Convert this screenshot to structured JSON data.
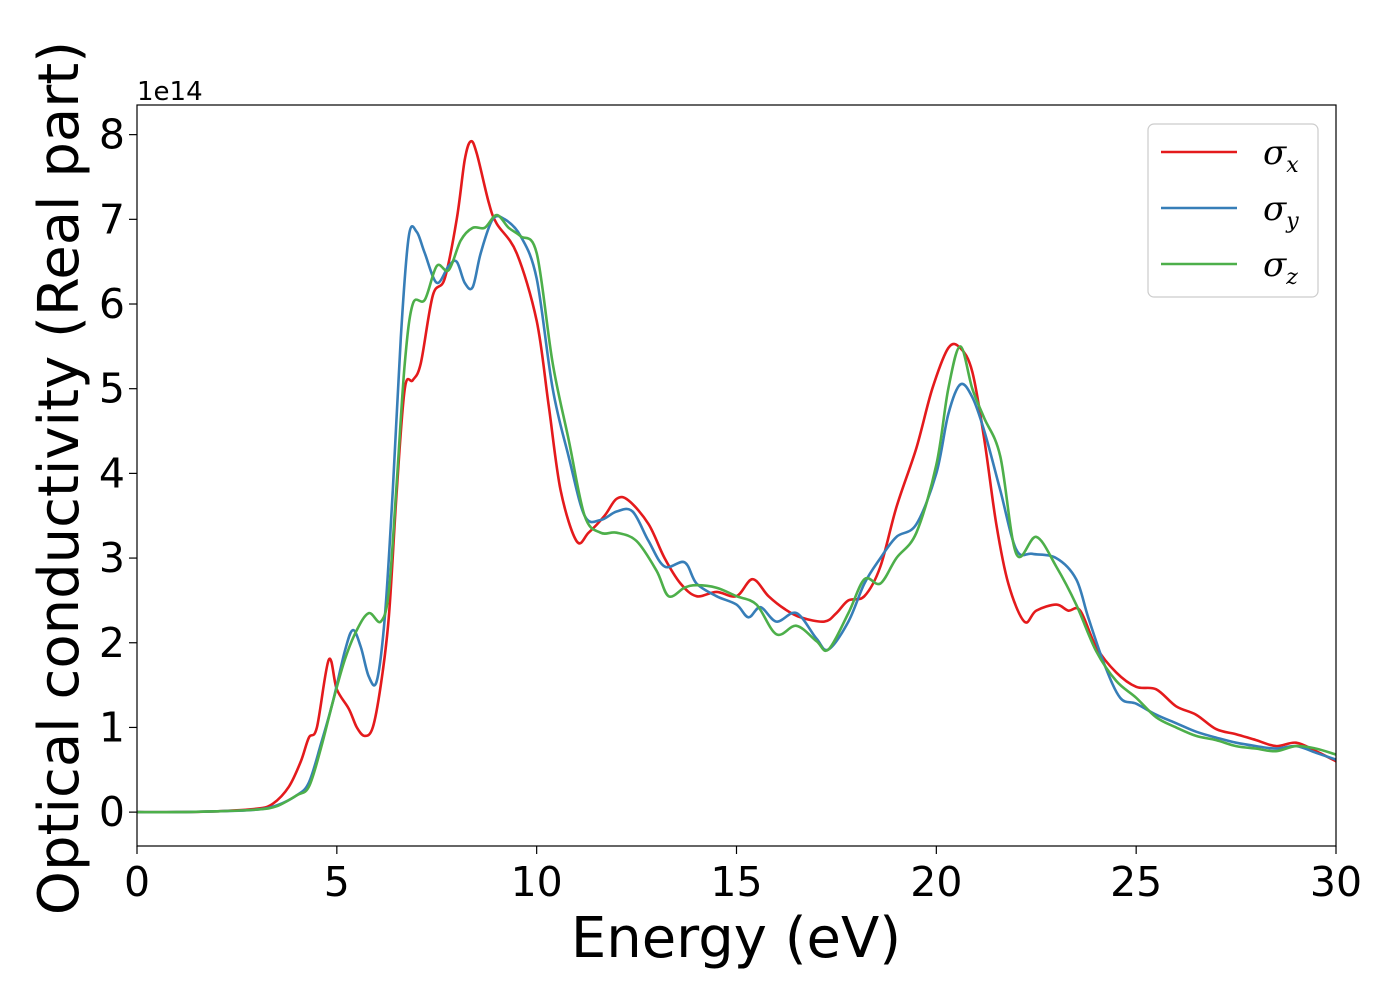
{
  "chart_data": {
    "type": "line",
    "xlabel": "Energy (eV)",
    "ylabel": "Optical conductivity (Real part)",
    "y_offset_label": "1e14",
    "xlim": [
      0,
      30
    ],
    "ylim": [
      -0.4,
      8.35
    ],
    "x_ticks": [
      0,
      5,
      10,
      15,
      20,
      25,
      30
    ],
    "y_ticks": [
      0,
      1,
      2,
      3,
      4,
      5,
      6,
      7,
      8
    ],
    "grid": false,
    "legend_position": "top-right",
    "series": [
      {
        "name": "σx",
        "symbol": "σ",
        "subscript": "x",
        "color": "#e41a1c",
        "points": [
          [
            0,
            0
          ],
          [
            1,
            0
          ],
          [
            2,
            0.01
          ],
          [
            3,
            0.04
          ],
          [
            3.4,
            0.1
          ],
          [
            3.8,
            0.3
          ],
          [
            4.1,
            0.6
          ],
          [
            4.3,
            0.88
          ],
          [
            4.5,
            1.0
          ],
          [
            4.8,
            1.8
          ],
          [
            5.0,
            1.45
          ],
          [
            5.3,
            1.22
          ],
          [
            5.5,
            1.0
          ],
          [
            5.7,
            0.9
          ],
          [
            5.9,
            1.0
          ],
          [
            6.1,
            1.5
          ],
          [
            6.3,
            2.3
          ],
          [
            6.5,
            3.8
          ],
          [
            6.7,
            5.0
          ],
          [
            6.9,
            5.1
          ],
          [
            7.1,
            5.3
          ],
          [
            7.4,
            6.1
          ],
          [
            7.7,
            6.3
          ],
          [
            8.0,
            7.0
          ],
          [
            8.2,
            7.7
          ],
          [
            8.35,
            7.92
          ],
          [
            8.5,
            7.78
          ],
          [
            8.8,
            7.2
          ],
          [
            9.0,
            6.95
          ],
          [
            9.5,
            6.6
          ],
          [
            10.0,
            5.8
          ],
          [
            10.3,
            4.8
          ],
          [
            10.6,
            3.8
          ],
          [
            11.0,
            3.2
          ],
          [
            11.3,
            3.3
          ],
          [
            11.7,
            3.5
          ],
          [
            12.0,
            3.7
          ],
          [
            12.3,
            3.68
          ],
          [
            12.8,
            3.4
          ],
          [
            13.2,
            3.0
          ],
          [
            13.6,
            2.7
          ],
          [
            14.0,
            2.55
          ],
          [
            14.5,
            2.6
          ],
          [
            15.0,
            2.55
          ],
          [
            15.4,
            2.75
          ],
          [
            15.8,
            2.55
          ],
          [
            16.2,
            2.4
          ],
          [
            16.6,
            2.3
          ],
          [
            17.2,
            2.25
          ],
          [
            17.5,
            2.35
          ],
          [
            17.8,
            2.5
          ],
          [
            18.2,
            2.55
          ],
          [
            18.6,
            2.9
          ],
          [
            19.0,
            3.6
          ],
          [
            19.5,
            4.3
          ],
          [
            19.9,
            5.0
          ],
          [
            20.3,
            5.48
          ],
          [
            20.6,
            5.48
          ],
          [
            20.9,
            5.2
          ],
          [
            21.2,
            4.4
          ],
          [
            21.5,
            3.4
          ],
          [
            21.8,
            2.7
          ],
          [
            22.2,
            2.25
          ],
          [
            22.5,
            2.38
          ],
          [
            23.0,
            2.45
          ],
          [
            23.3,
            2.38
          ],
          [
            23.6,
            2.38
          ],
          [
            24.0,
            1.95
          ],
          [
            24.5,
            1.65
          ],
          [
            25.0,
            1.48
          ],
          [
            25.5,
            1.45
          ],
          [
            26.0,
            1.25
          ],
          [
            26.5,
            1.15
          ],
          [
            27.0,
            0.98
          ],
          [
            27.5,
            0.92
          ],
          [
            28.0,
            0.85
          ],
          [
            28.5,
            0.78
          ],
          [
            29.0,
            0.82
          ],
          [
            29.5,
            0.72
          ],
          [
            30.0,
            0.6
          ]
        ]
      },
      {
        "name": "σy",
        "symbol": "σ",
        "subscript": "y",
        "color": "#377eb8",
        "points": [
          [
            0,
            0
          ],
          [
            1,
            0
          ],
          [
            2,
            0.01
          ],
          [
            3,
            0.03
          ],
          [
            3.5,
            0.08
          ],
          [
            4.0,
            0.2
          ],
          [
            4.3,
            0.35
          ],
          [
            4.6,
            0.8
          ],
          [
            4.9,
            1.3
          ],
          [
            5.2,
            1.9
          ],
          [
            5.4,
            2.15
          ],
          [
            5.6,
            1.95
          ],
          [
            5.8,
            1.6
          ],
          [
            6.0,
            1.55
          ],
          [
            6.2,
            2.3
          ],
          [
            6.4,
            3.8
          ],
          [
            6.6,
            5.6
          ],
          [
            6.8,
            6.8
          ],
          [
            7.0,
            6.85
          ],
          [
            7.2,
            6.6
          ],
          [
            7.5,
            6.25
          ],
          [
            7.8,
            6.45
          ],
          [
            8.0,
            6.5
          ],
          [
            8.2,
            6.25
          ],
          [
            8.4,
            6.2
          ],
          [
            8.6,
            6.6
          ],
          [
            8.9,
            7.0
          ],
          [
            9.2,
            7.0
          ],
          [
            9.6,
            6.8
          ],
          [
            10.0,
            6.3
          ],
          [
            10.4,
            5.0
          ],
          [
            10.8,
            4.2
          ],
          [
            11.2,
            3.5
          ],
          [
            11.6,
            3.45
          ],
          [
            12.0,
            3.55
          ],
          [
            12.4,
            3.55
          ],
          [
            12.8,
            3.2
          ],
          [
            13.2,
            2.9
          ],
          [
            13.7,
            2.95
          ],
          [
            14.0,
            2.7
          ],
          [
            14.5,
            2.55
          ],
          [
            15.0,
            2.45
          ],
          [
            15.3,
            2.3
          ],
          [
            15.6,
            2.42
          ],
          [
            16.0,
            2.25
          ],
          [
            16.5,
            2.35
          ],
          [
            17.0,
            2.05
          ],
          [
            17.3,
            1.92
          ],
          [
            17.8,
            2.25
          ],
          [
            18.2,
            2.7
          ],
          [
            18.6,
            3.0
          ],
          [
            19.0,
            3.25
          ],
          [
            19.5,
            3.4
          ],
          [
            20.0,
            4.0
          ],
          [
            20.3,
            4.7
          ],
          [
            20.6,
            5.05
          ],
          [
            20.9,
            4.9
          ],
          [
            21.2,
            4.5
          ],
          [
            21.6,
            3.8
          ],
          [
            22.0,
            3.1
          ],
          [
            22.4,
            3.05
          ],
          [
            23.0,
            3.0
          ],
          [
            23.5,
            2.75
          ],
          [
            23.8,
            2.3
          ],
          [
            24.2,
            1.75
          ],
          [
            24.6,
            1.35
          ],
          [
            25.0,
            1.28
          ],
          [
            25.5,
            1.15
          ],
          [
            26.0,
            1.05
          ],
          [
            26.5,
            0.95
          ],
          [
            27.0,
            0.88
          ],
          [
            27.5,
            0.82
          ],
          [
            28.0,
            0.78
          ],
          [
            28.5,
            0.75
          ],
          [
            29.0,
            0.78
          ],
          [
            29.5,
            0.7
          ],
          [
            30.0,
            0.62
          ]
        ]
      },
      {
        "name": "σz",
        "symbol": "σ",
        "subscript": "z",
        "color": "#4daf4a",
        "points": [
          [
            0,
            0
          ],
          [
            1,
            0
          ],
          [
            2,
            0.01
          ],
          [
            3,
            0.03
          ],
          [
            3.5,
            0.07
          ],
          [
            4.0,
            0.2
          ],
          [
            4.3,
            0.3
          ],
          [
            4.6,
            0.75
          ],
          [
            4.9,
            1.3
          ],
          [
            5.2,
            1.8
          ],
          [
            5.5,
            2.15
          ],
          [
            5.8,
            2.35
          ],
          [
            6.1,
            2.25
          ],
          [
            6.3,
            2.6
          ],
          [
            6.5,
            3.9
          ],
          [
            6.7,
            5.3
          ],
          [
            6.9,
            6.0
          ],
          [
            7.2,
            6.05
          ],
          [
            7.5,
            6.45
          ],
          [
            7.8,
            6.4
          ],
          [
            8.1,
            6.75
          ],
          [
            8.4,
            6.9
          ],
          [
            8.7,
            6.9
          ],
          [
            9.0,
            7.05
          ],
          [
            9.3,
            6.9
          ],
          [
            9.6,
            6.8
          ],
          [
            10.0,
            6.6
          ],
          [
            10.4,
            5.3
          ],
          [
            10.8,
            4.4
          ],
          [
            11.2,
            3.5
          ],
          [
            11.6,
            3.3
          ],
          [
            12.0,
            3.3
          ],
          [
            12.5,
            3.2
          ],
          [
            13.0,
            2.85
          ],
          [
            13.3,
            2.55
          ],
          [
            13.7,
            2.65
          ],
          [
            14.0,
            2.68
          ],
          [
            14.5,
            2.65
          ],
          [
            15.0,
            2.55
          ],
          [
            15.5,
            2.45
          ],
          [
            16.0,
            2.1
          ],
          [
            16.5,
            2.2
          ],
          [
            17.0,
            2.02
          ],
          [
            17.3,
            1.92
          ],
          [
            17.8,
            2.35
          ],
          [
            18.2,
            2.75
          ],
          [
            18.6,
            2.7
          ],
          [
            19.0,
            3.0
          ],
          [
            19.5,
            3.3
          ],
          [
            20.0,
            4.1
          ],
          [
            20.3,
            5.0
          ],
          [
            20.6,
            5.5
          ],
          [
            20.9,
            5.0
          ],
          [
            21.2,
            4.65
          ],
          [
            21.6,
            4.2
          ],
          [
            22.0,
            3.05
          ],
          [
            22.5,
            3.25
          ],
          [
            23.0,
            2.9
          ],
          [
            23.5,
            2.45
          ],
          [
            24.0,
            1.9
          ],
          [
            24.5,
            1.55
          ],
          [
            25.0,
            1.35
          ],
          [
            25.5,
            1.12
          ],
          [
            26.0,
            1.0
          ],
          [
            26.5,
            0.9
          ],
          [
            27.0,
            0.85
          ],
          [
            27.5,
            0.78
          ],
          [
            28.0,
            0.75
          ],
          [
            28.5,
            0.72
          ],
          [
            29.0,
            0.78
          ],
          [
            29.5,
            0.75
          ],
          [
            30.0,
            0.68
          ]
        ]
      }
    ]
  }
}
